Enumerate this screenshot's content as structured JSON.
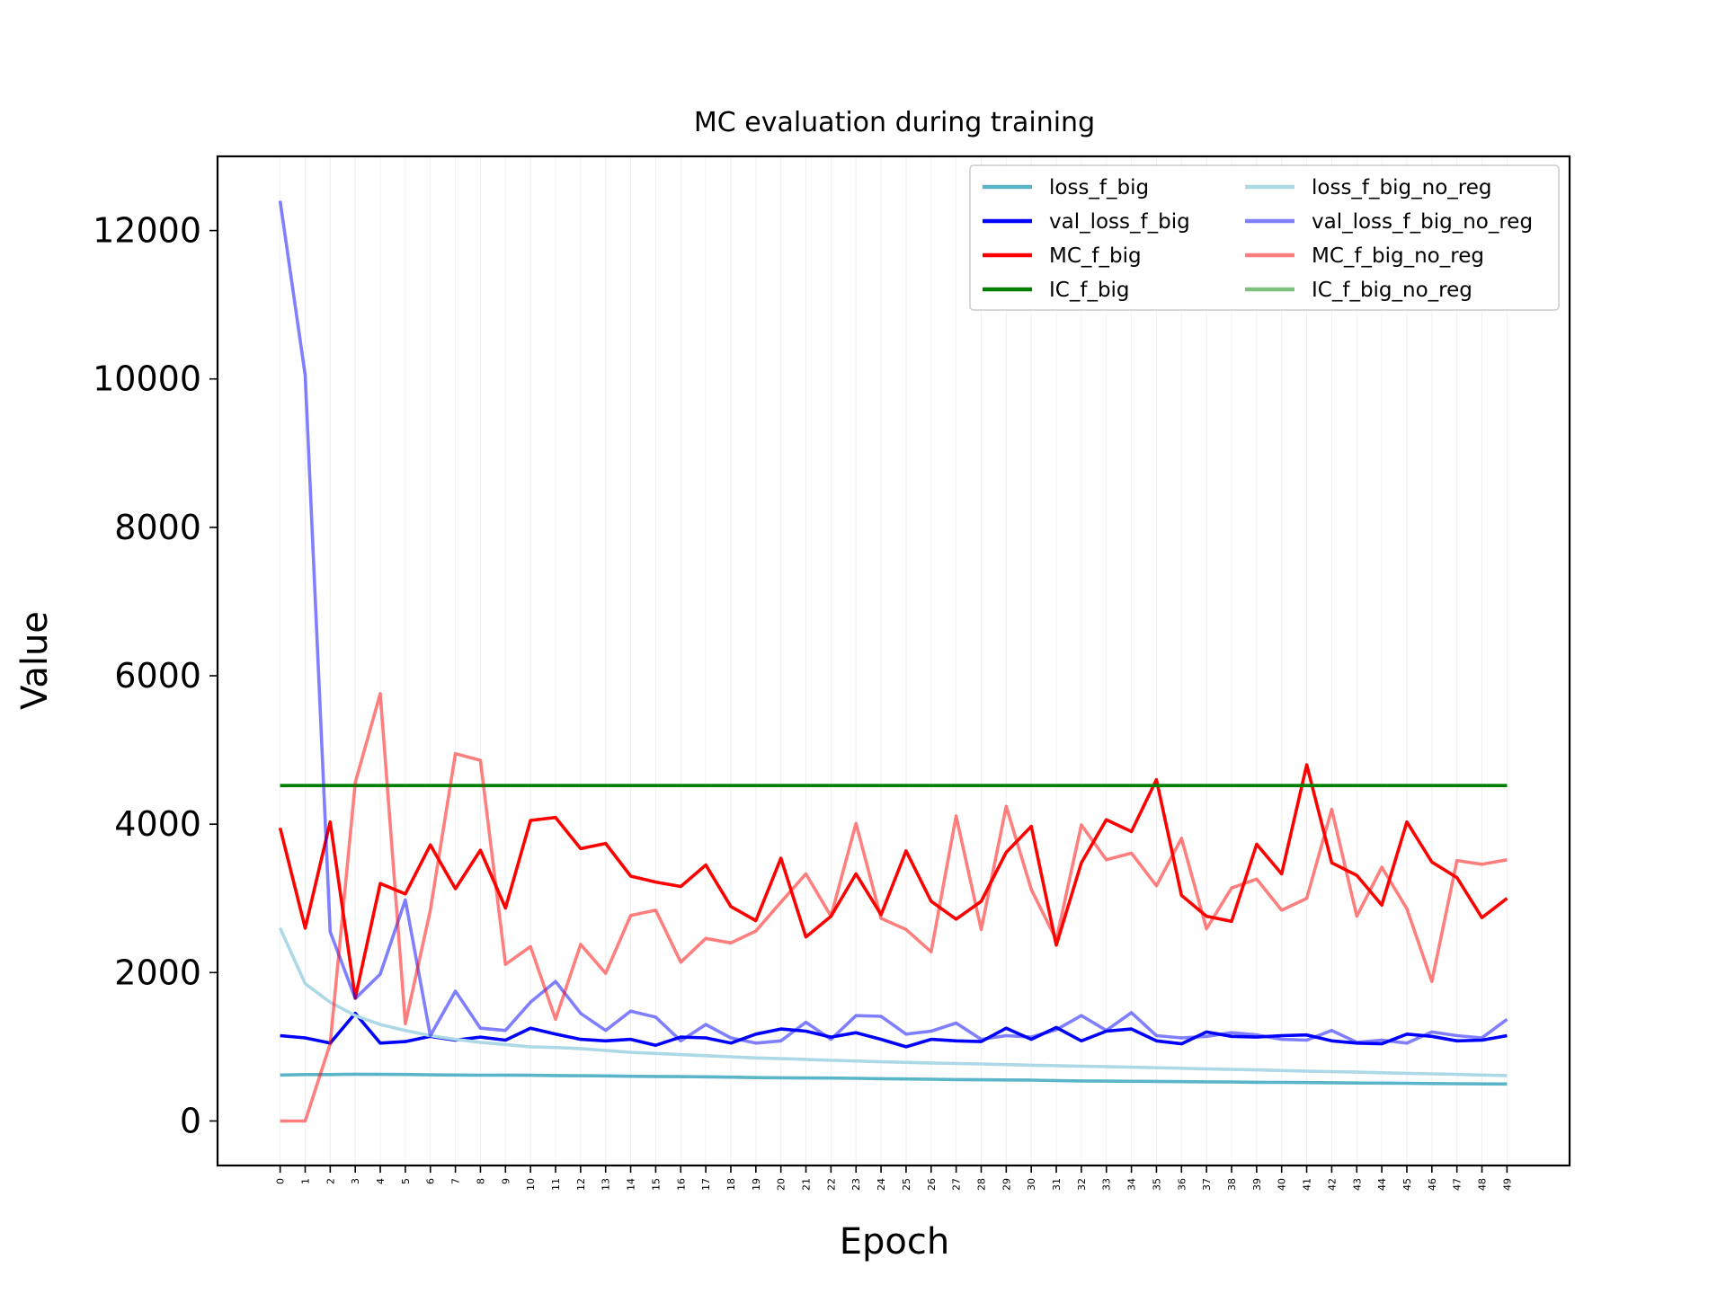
{
  "chart_data": {
    "type": "line",
    "title": "MC evaluation during training",
    "xlabel": "Epoch",
    "ylabel": "Value",
    "xlim": [
      -2.5,
      51.5
    ],
    "ylim": [
      -600,
      13000
    ],
    "yticks": [
      0,
      2000,
      4000,
      6000,
      8000,
      10000,
      12000
    ],
    "ytick_labels": [
      "0",
      "2000",
      "4000",
      "6000",
      "8000",
      "10000",
      "12000"
    ],
    "xtick_labels": [
      "0",
      "1",
      "2",
      "3",
      "4",
      "5",
      "6",
      "7",
      "8",
      "9",
      "10",
      "11",
      "12",
      "13",
      "14",
      "15",
      "16",
      "17",
      "18",
      "19",
      "20",
      "21",
      "22",
      "23",
      "24",
      "25",
      "26",
      "27",
      "28",
      "29",
      "30",
      "31",
      "32",
      "33",
      "34",
      "35",
      "36",
      "37",
      "38",
      "39",
      "40",
      "41",
      "42",
      "43",
      "44",
      "45",
      "46",
      "47",
      "48",
      "49"
    ],
    "grid": "vertical-light",
    "legend_position": "top-right",
    "x": [
      0,
      1,
      2,
      3,
      4,
      5,
      6,
      7,
      8,
      9,
      10,
      11,
      12,
      13,
      14,
      15,
      16,
      17,
      18,
      19,
      20,
      21,
      22,
      23,
      24,
      25,
      26,
      27,
      28,
      29,
      30,
      31,
      32,
      33,
      34,
      35,
      36,
      37,
      38,
      39,
      40,
      41,
      42,
      43,
      44,
      45,
      46,
      47,
      48,
      49
    ],
    "series": [
      {
        "name": "loss_f_big",
        "color": "#5bb5c8",
        "opacity": 1,
        "values": [
          620,
          625,
          625,
          630,
          628,
          627,
          622,
          620,
          617,
          618,
          616,
          612,
          610,
          607,
          603,
          600,
          598,
          595,
          590,
          585,
          582,
          580,
          578,
          575,
          570,
          566,
          562,
          558,
          555,
          553,
          550,
          545,
          540,
          537,
          535,
          533,
          530,
          528,
          525,
          522,
          520,
          518,
          515,
          512,
          510,
          508,
          505,
          502,
          500,
          498
        ]
      },
      {
        "name": "val_loss_f_big",
        "color": "#0000ff",
        "opacity": 1,
        "values": [
          1150,
          1120,
          1050,
          1450,
          1050,
          1070,
          1140,
          1090,
          1130,
          1090,
          1250,
          1170,
          1100,
          1080,
          1100,
          1020,
          1130,
          1120,
          1050,
          1170,
          1240,
          1210,
          1130,
          1190,
          1100,
          1000,
          1100,
          1080,
          1070,
          1250,
          1100,
          1260,
          1080,
          1210,
          1240,
          1080,
          1040,
          1200,
          1140,
          1130,
          1150,
          1160,
          1080,
          1050,
          1040,
          1170,
          1140,
          1080,
          1090,
          1150
        ]
      },
      {
        "name": "MC_f_big",
        "color": "#ff0000",
        "opacity": 1,
        "values": [
          3950,
          2600,
          4030,
          1660,
          3200,
          3060,
          3720,
          3130,
          3650,
          2870,
          4050,
          4090,
          3670,
          3740,
          3300,
          3220,
          3160,
          3450,
          2890,
          2700,
          3540,
          2480,
          2760,
          3330,
          2780,
          3640,
          2960,
          2720,
          2960,
          3620,
          3970,
          2370,
          3480,
          4060,
          3900,
          4600,
          3040,
          2760,
          2690,
          3730,
          3330,
          4800,
          3480,
          3310,
          2910,
          4030,
          3490,
          3280,
          2740,
          3000
        ]
      },
      {
        "name": "IC_f_big",
        "color": "#008000",
        "opacity": 1,
        "values": [
          4520,
          4520,
          4520,
          4520,
          4520,
          4520,
          4520,
          4520,
          4520,
          4520,
          4520,
          4520,
          4520,
          4520,
          4520,
          4520,
          4520,
          4520,
          4520,
          4520,
          4520,
          4520,
          4520,
          4520,
          4520,
          4520,
          4520,
          4520,
          4520,
          4520,
          4520,
          4520,
          4520,
          4520,
          4520,
          4520,
          4520,
          4520,
          4520,
          4520,
          4520,
          4520,
          4520,
          4520,
          4520,
          4520,
          4520,
          4520,
          4520,
          4520
        ]
      },
      {
        "name": "loss_f_big_no_reg",
        "color": "#add8e6",
        "opacity": 1,
        "values": [
          2600,
          1850,
          1600,
          1420,
          1300,
          1220,
          1150,
          1100,
          1060,
          1030,
          1000,
          990,
          975,
          950,
          925,
          910,
          895,
          880,
          865,
          850,
          840,
          830,
          818,
          808,
          798,
          790,
          782,
          775,
          768,
          760,
          752,
          745,
          738,
          732,
          725,
          718,
          710,
          702,
          695,
          688,
          680,
          672,
          665,
          658,
          650,
          642,
          635,
          628,
          620,
          612
        ]
      },
      {
        "name": "val_loss_f_big_no_reg",
        "color": "#0000ff",
        "opacity": 0.5,
        "values": [
          12400,
          10050,
          2550,
          1650,
          1980,
          2980,
          1150,
          1750,
          1250,
          1220,
          1600,
          1880,
          1450,
          1220,
          1480,
          1400,
          1080,
          1300,
          1120,
          1050,
          1080,
          1330,
          1100,
          1420,
          1410,
          1170,
          1210,
          1320,
          1100,
          1150,
          1130,
          1230,
          1420,
          1220,
          1460,
          1150,
          1120,
          1140,
          1190,
          1160,
          1100,
          1090,
          1220,
          1060,
          1090,
          1050,
          1200,
          1150,
          1120,
          1370
        ]
      },
      {
        "name": "MC_f_big_no_reg",
        "color": "#ff0000",
        "opacity": 0.5,
        "values": [
          0,
          0,
          1040,
          4560,
          5760,
          1310,
          2840,
          4950,
          4860,
          2110,
          2350,
          1370,
          2380,
          1990,
          2770,
          2840,
          2140,
          2460,
          2400,
          2560,
          2950,
          3330,
          2760,
          4010,
          2730,
          2580,
          2280,
          4110,
          2580,
          4240,
          3120,
          2440,
          3990,
          3520,
          3610,
          3170,
          3810,
          2590,
          3140,
          3260,
          2840,
          3000,
          4200,
          2760,
          3420,
          2860,
          1880,
          3510,
          3460,
          3520
        ]
      },
      {
        "name": "IC_f_big_no_reg",
        "color": "#008000",
        "opacity": 0.5,
        "values": [
          4520,
          4520,
          4520,
          4520,
          4520,
          4520,
          4520,
          4520,
          4520,
          4520,
          4520,
          4520,
          4520,
          4520,
          4520,
          4520,
          4520,
          4520,
          4520,
          4520,
          4520,
          4520,
          4520,
          4520,
          4520,
          4520,
          4520,
          4520,
          4520,
          4520,
          4520,
          4520,
          4520,
          4520,
          4520,
          4520,
          4520,
          4520,
          4520,
          4520,
          4520,
          4520,
          4520,
          4520,
          4520,
          4520,
          4520,
          4520,
          4520,
          4520
        ]
      }
    ]
  }
}
